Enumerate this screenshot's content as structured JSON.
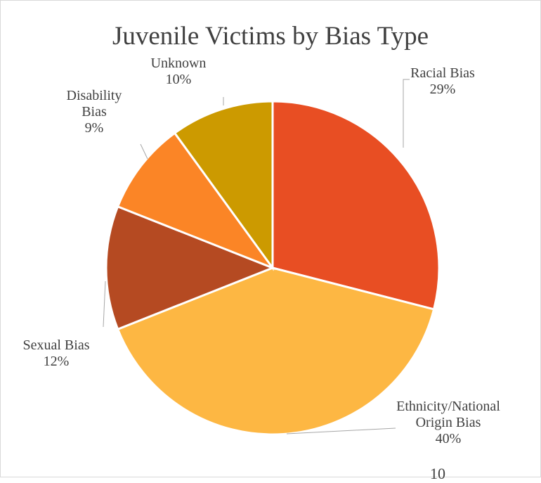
{
  "chart_data": {
    "type": "pie",
    "title": "Juvenile Victims by Bias Type",
    "slices": [
      {
        "label": "Racial Bias",
        "pct_label": "29%",
        "value": 29,
        "color": "#E84E23"
      },
      {
        "label": "Ethnicity/National Origin Bias",
        "pct_label": "40%",
        "value": 40,
        "color": "#FDB743"
      },
      {
        "label": "Sexual Bias",
        "pct_label": "12%",
        "value": 12,
        "color": "#B54A22"
      },
      {
        "label": "Disability Bias",
        "pct_label": "9%",
        "value": 9,
        "color": "#FB8526"
      },
      {
        "label": "Unknown",
        "pct_label": "10%",
        "value": 10,
        "color": "#CC9A00"
      }
    ],
    "start_angle": "12 o'clock",
    "direction": "clockwise",
    "legend": "none",
    "labels": "outside with leader lines"
  },
  "footer_text": "10"
}
